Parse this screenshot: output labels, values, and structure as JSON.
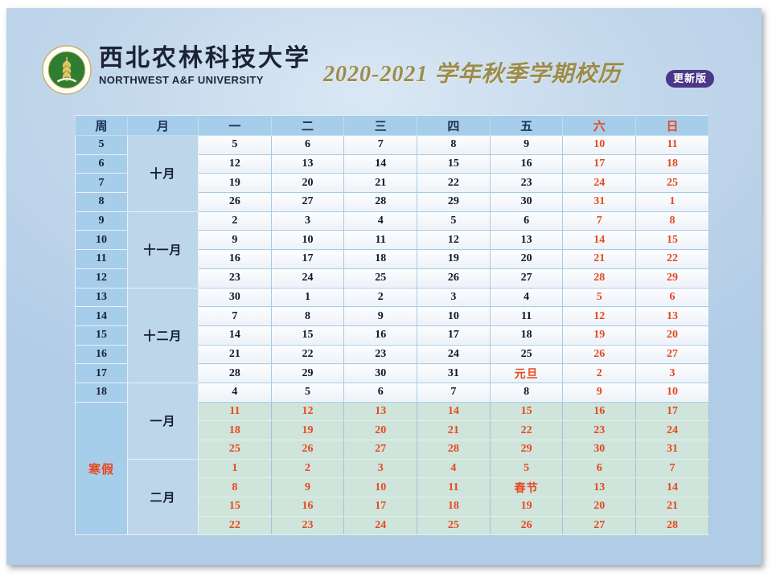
{
  "brand": {
    "logo_icon": "university-seal-wheat-icon",
    "university_cn": "西北农林科技大学",
    "university_en": "NORTHWEST A&F UNIVERSITY"
  },
  "header": {
    "title": "2020-2021 学年秋季学期校历",
    "badge": "更新版"
  },
  "colors": {
    "accent_orange": "#e8481e",
    "header_navy": "#1c3054",
    "title_gold": "#9d8c48",
    "badge_purple": "#4a3788",
    "panel_blue": "#a6cdea",
    "month_blue": "#bed6e9",
    "vacation_green": "#cfe4db",
    "seal_green": "#2e7d32"
  },
  "calendar": {
    "headers": [
      "周",
      "月",
      "一",
      "二",
      "三",
      "四",
      "五",
      "六",
      "日"
    ],
    "weekend_header_indices": [
      7,
      8
    ],
    "vacation_label": "寒假",
    "holidays": [
      "元旦",
      "春节"
    ],
    "rows": [
      {
        "week": "5",
        "month": {
          "label": "十月",
          "span": 4
        },
        "days": [
          "5",
          "6",
          "7",
          "8",
          "9",
          "10",
          "11"
        ]
      },
      {
        "week": "6",
        "days": [
          "12",
          "13",
          "14",
          "15",
          "16",
          "17",
          "18"
        ]
      },
      {
        "week": "7",
        "days": [
          "19",
          "20",
          "21",
          "22",
          "23",
          "24",
          "25"
        ]
      },
      {
        "week": "8",
        "days": [
          "26",
          "27",
          "28",
          "29",
          "30",
          "31",
          "1"
        ]
      },
      {
        "week": "9",
        "month": {
          "label": "十一月",
          "span": 4
        },
        "days": [
          "2",
          "3",
          "4",
          "5",
          "6",
          "7",
          "8"
        ]
      },
      {
        "week": "10",
        "days": [
          "9",
          "10",
          "11",
          "12",
          "13",
          "14",
          "15"
        ]
      },
      {
        "week": "11",
        "days": [
          "16",
          "17",
          "18",
          "19",
          "20",
          "21",
          "22"
        ]
      },
      {
        "week": "12",
        "days": [
          "23",
          "24",
          "25",
          "26",
          "27",
          "28",
          "29"
        ]
      },
      {
        "week": "13",
        "month": {
          "label": "十二月",
          "span": 5
        },
        "days": [
          "30",
          "1",
          "2",
          "3",
          "4",
          "5",
          "6"
        ]
      },
      {
        "week": "14",
        "days": [
          "7",
          "8",
          "9",
          "10",
          "11",
          "12",
          "13"
        ]
      },
      {
        "week": "15",
        "days": [
          "14",
          "15",
          "16",
          "17",
          "18",
          "19",
          "20"
        ]
      },
      {
        "week": "16",
        "days": [
          "21",
          "22",
          "23",
          "24",
          "25",
          "26",
          "27"
        ]
      },
      {
        "week": "17",
        "days": [
          "28",
          "29",
          "30",
          "31",
          "元旦",
          "2",
          "3"
        ]
      },
      {
        "week": "18",
        "month": {
          "label": "一月",
          "span": 4
        },
        "days": [
          "4",
          "5",
          "6",
          "7",
          "8",
          "9",
          "10"
        ]
      },
      {
        "vacation": true,
        "week_span_label": "寒假",
        "week_span": 7,
        "days": [
          "11",
          "12",
          "13",
          "14",
          "15",
          "16",
          "17"
        ]
      },
      {
        "vacation": true,
        "days": [
          "18",
          "19",
          "20",
          "21",
          "22",
          "23",
          "24"
        ]
      },
      {
        "vacation": true,
        "days": [
          "25",
          "26",
          "27",
          "28",
          "29",
          "30",
          "31"
        ]
      },
      {
        "vacation": true,
        "month": {
          "label": "二月",
          "span": 4
        },
        "days": [
          "1",
          "2",
          "3",
          "4",
          "5",
          "6",
          "7"
        ]
      },
      {
        "vacation": true,
        "days": [
          "8",
          "9",
          "10",
          "11",
          "春节",
          "13",
          "14"
        ]
      },
      {
        "vacation": true,
        "days": [
          "15",
          "16",
          "17",
          "18",
          "19",
          "20",
          "21"
        ]
      },
      {
        "vacation": true,
        "days": [
          "22",
          "23",
          "24",
          "25",
          "26",
          "27",
          "28"
        ]
      }
    ]
  }
}
